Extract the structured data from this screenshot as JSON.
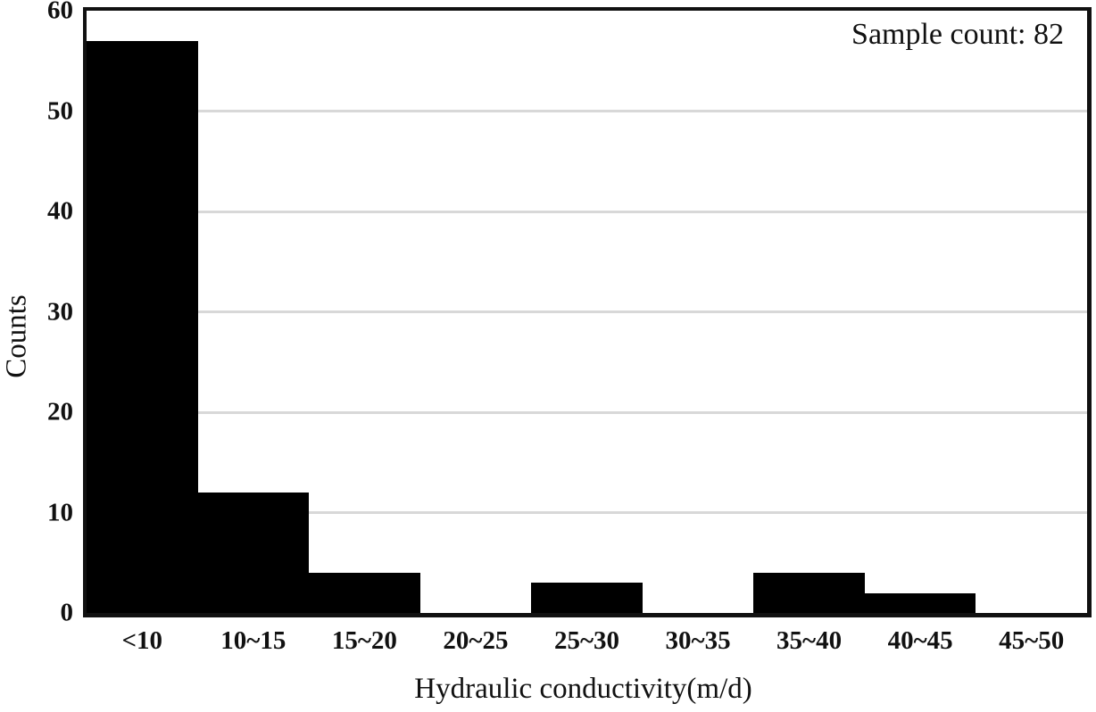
{
  "chart_data": {
    "type": "bar",
    "title": "",
    "categories": [
      "<10",
      "10~15",
      "15~20",
      "20~25",
      "25~30",
      "30~35",
      "35~40",
      "40~45",
      "45~50"
    ],
    "values": [
      57,
      12,
      4,
      0,
      3,
      0,
      4,
      2,
      0
    ],
    "xlabel": "Hydraulic conductivity(m/d)",
    "ylabel": "Counts",
    "ylim": [
      0,
      60
    ],
    "yticks": [
      0,
      10,
      20,
      30,
      40,
      50,
      60
    ],
    "grid": "horizontal",
    "legend": "none",
    "annotation": "Sample count: 82",
    "annotation_position": "top-right",
    "bar_color": "#000000",
    "gridline_color": "#d8d8d8",
    "frame_color": "#111111",
    "sample_count": 82
  }
}
